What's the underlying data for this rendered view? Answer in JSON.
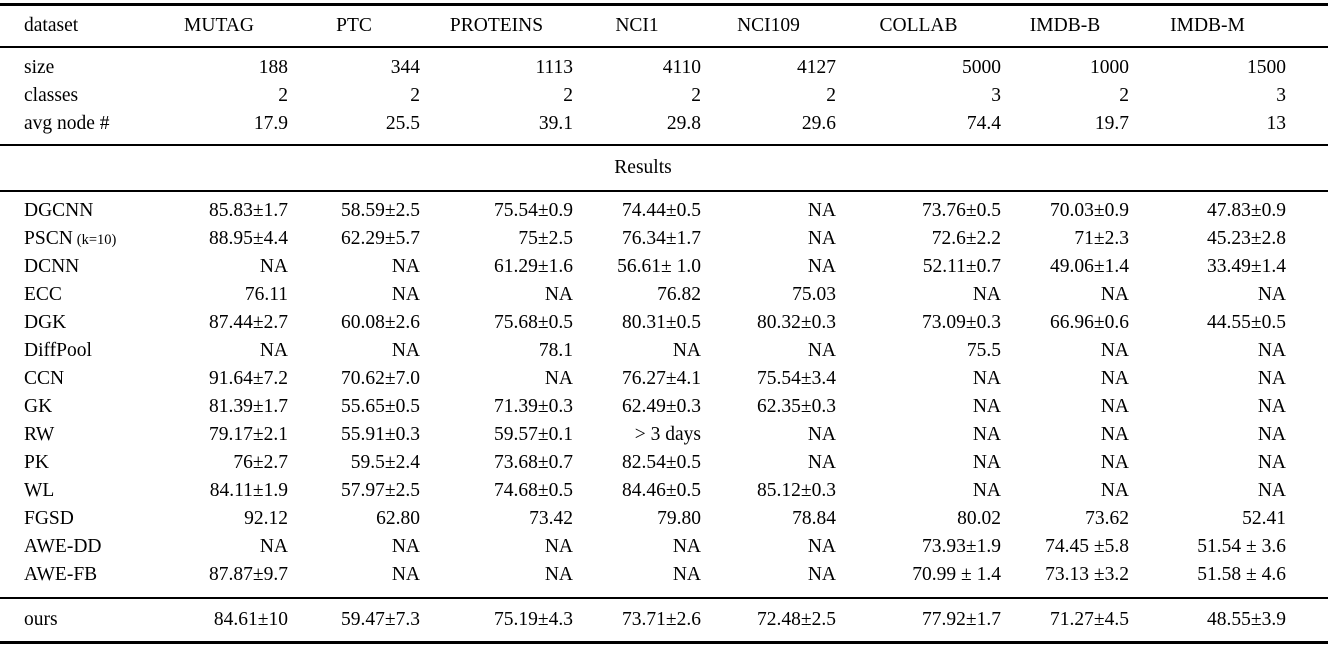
{
  "table": {
    "columns": [
      "dataset",
      "MUTAG",
      "PTC",
      "PROTEINS",
      "NCI1",
      "NCI109",
      "COLLAB",
      "IMDB-B",
      "IMDB-M"
    ],
    "info_rows": [
      {
        "label": "size",
        "values": [
          "188",
          "344",
          "1113",
          "4110",
          "4127",
          "5000",
          "1000",
          "1500"
        ]
      },
      {
        "label": "classes",
        "values": [
          "2",
          "2",
          "2",
          "2",
          "2",
          "3",
          "2",
          "3"
        ]
      },
      {
        "label": "avg node #",
        "values": [
          "17.9",
          "25.5",
          "39.1",
          "29.8",
          "29.6",
          "74.4",
          "19.7",
          "13"
        ]
      }
    ],
    "section_title": "Results",
    "result_rows": [
      {
        "method": "DGCNN",
        "values": [
          "85.83±1.7",
          "58.59±2.5",
          "75.54±0.9",
          "74.44±0.5",
          "NA",
          "73.76±0.5",
          "70.03±0.9",
          "47.83±0.9"
        ]
      },
      {
        "method": "PSCN",
        "method_note": "(k=10)",
        "values": [
          "88.95±4.4",
          "62.29±5.7",
          "75±2.5",
          "76.34±1.7",
          "NA",
          "72.6±2.2",
          "71±2.3",
          "45.23±2.8"
        ]
      },
      {
        "method": "DCNN",
        "values": [
          "NA",
          "NA",
          "61.29±1.6",
          "56.61± 1.0",
          "NA",
          "52.11±0.7",
          "49.06±1.4",
          "33.49±1.4"
        ]
      },
      {
        "method": "ECC",
        "values": [
          "76.11",
          "NA",
          "NA",
          "76.82",
          "75.03",
          "NA",
          "NA",
          "NA"
        ]
      },
      {
        "method": "DGK",
        "values": [
          "87.44±2.7",
          "60.08±2.6",
          "75.68±0.5",
          "80.31±0.5",
          "80.32±0.3",
          "73.09±0.3",
          "66.96±0.6",
          "44.55±0.5"
        ]
      },
      {
        "method": "DiffPool",
        "values": [
          "NA",
          "NA",
          "78.1",
          "NA",
          "NA",
          "75.5",
          "NA",
          "NA"
        ]
      },
      {
        "method": "CCN",
        "values": [
          "91.64±7.2",
          "70.62±7.0",
          "NA",
          "76.27±4.1",
          "75.54±3.4",
          "NA",
          "NA",
          "NA"
        ]
      },
      {
        "method": "GK",
        "values": [
          "81.39±1.7",
          "55.65±0.5",
          "71.39±0.3",
          "62.49±0.3",
          "62.35±0.3",
          "NA",
          "NA",
          "NA"
        ]
      },
      {
        "method": "RW",
        "values": [
          "79.17±2.1",
          "55.91±0.3",
          "59.57±0.1",
          "> 3 days",
          "NA",
          "NA",
          "NA",
          "NA"
        ]
      },
      {
        "method": "PK",
        "values": [
          "76±2.7",
          "59.5±2.4",
          "73.68±0.7",
          "82.54±0.5",
          "NA",
          "NA",
          "NA",
          "NA"
        ]
      },
      {
        "method": "WL",
        "values": [
          "84.11±1.9",
          "57.97±2.5",
          "74.68±0.5",
          "84.46±0.5",
          "85.12±0.3",
          "NA",
          "NA",
          "NA"
        ]
      },
      {
        "method": "FGSD",
        "values": [
          "92.12",
          "62.80",
          "73.42",
          "79.80",
          "78.84",
          "80.02",
          "73.62",
          "52.41"
        ]
      },
      {
        "method": "AWE-DD",
        "values": [
          "NA",
          "NA",
          "NA",
          "NA",
          "NA",
          "73.93±1.9",
          "74.45 ±5.8",
          "51.54 ± 3.6"
        ]
      },
      {
        "method": "AWE-FB",
        "values": [
          "87.87±9.7",
          "NA",
          "NA",
          "NA",
          "NA",
          "70.99 ± 1.4",
          "73.13 ±3.2",
          "51.58 ± 4.6"
        ]
      }
    ],
    "ours_row": {
      "method": "ours",
      "values": [
        "84.61±10",
        "59.47±7.3",
        "75.19±4.3",
        "73.71±2.6",
        "72.48±2.5",
        "77.92±1.7",
        "71.27±4.5",
        "48.55±3.9"
      ]
    }
  }
}
